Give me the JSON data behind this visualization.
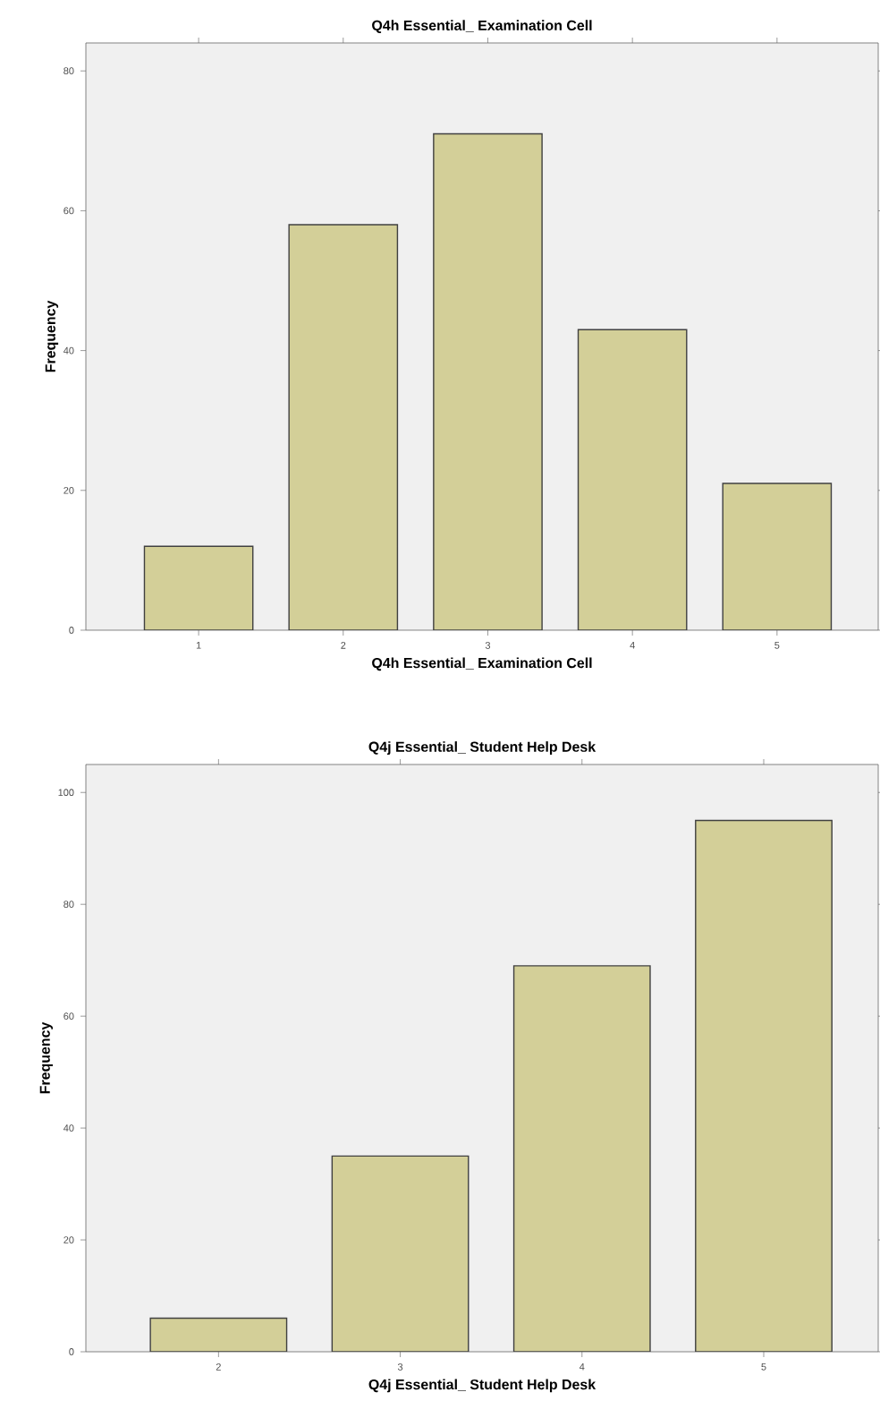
{
  "chart_data": [
    {
      "type": "bar",
      "title": "Q4h Essential_ Examination Cell",
      "xlabel": "Q4h Essential_ Examination Cell",
      "ylabel": "Frequency",
      "categories": [
        "1",
        "2",
        "3",
        "4",
        "5"
      ],
      "values": [
        12,
        58,
        71,
        43,
        21
      ],
      "color": "#d3cf98",
      "ylim": [
        0,
        84
      ],
      "yticks": [
        0,
        20,
        40,
        60,
        80
      ]
    },
    {
      "type": "bar",
      "title": "Q4j Essential_ Student Help Desk",
      "xlabel": "Q4j Essential_ Student Help Desk",
      "ylabel": "Frequency",
      "categories": [
        "2",
        "3",
        "4",
        "5"
      ],
      "values": [
        6,
        35,
        69,
        95
      ],
      "color": "#d3cf98",
      "ylim": [
        0,
        105
      ],
      "yticks": [
        0,
        20,
        40,
        60,
        80,
        100
      ]
    }
  ]
}
